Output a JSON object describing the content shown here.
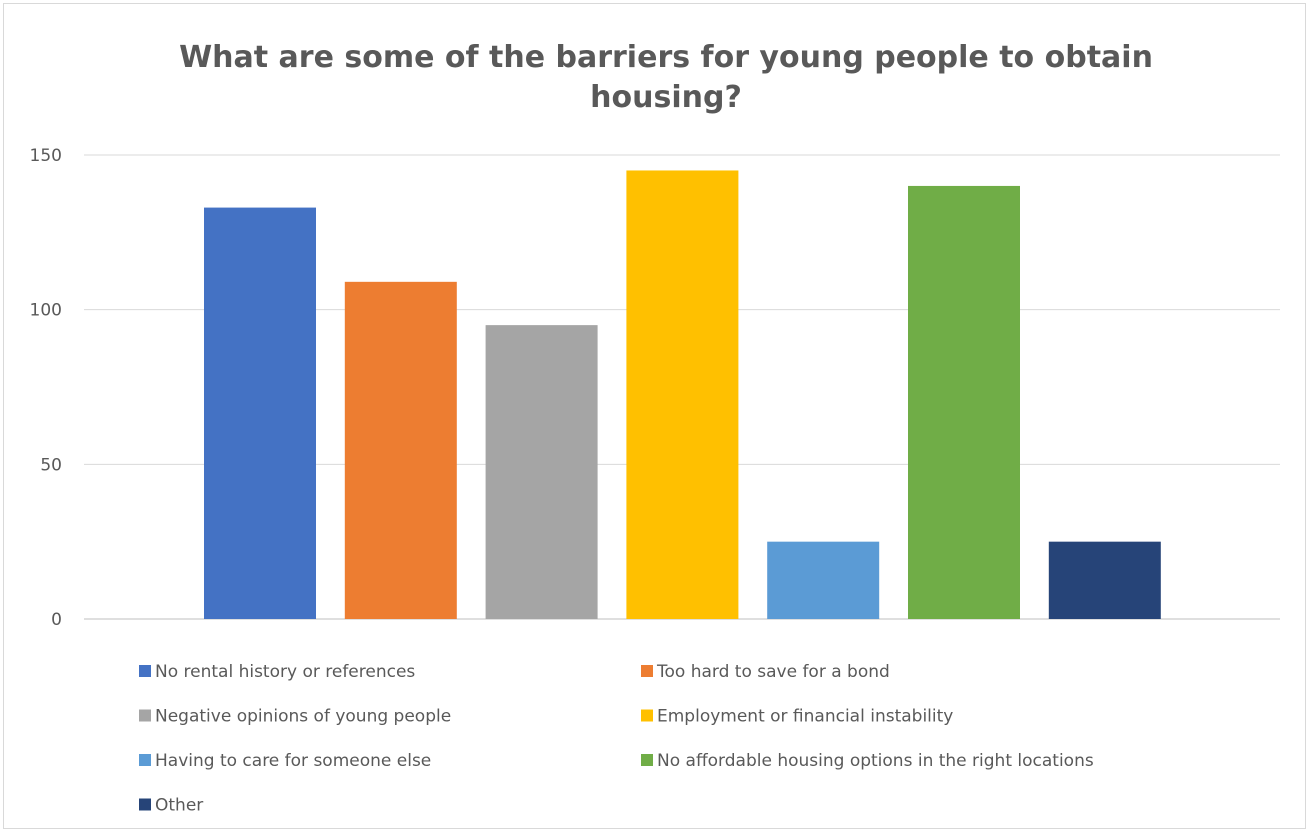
{
  "chart_data": {
    "type": "bar",
    "title_lines": [
      "What are some of the barriers for young people to obtain",
      "housing?"
    ],
    "categories": [
      "No rental history or references",
      "Too hard to save for a bond",
      "Negative opinions of young people",
      "Employment or financial instability",
      "Having to care for someone else",
      "No affordable housing options in the right locations",
      "Other"
    ],
    "values": [
      133,
      109,
      95,
      145,
      25,
      140,
      25
    ],
    "colors": [
      "#4472c4",
      "#ed7d31",
      "#a5a5a5",
      "#ffc000",
      "#5b9bd5",
      "#70ad47",
      "#264478"
    ],
    "ylim": [
      0,
      150
    ],
    "yticks": [
      "0",
      "50",
      "100",
      "150"
    ],
    "grid": true,
    "legend_position": "bottom",
    "xlabel": "",
    "ylabel": ""
  }
}
